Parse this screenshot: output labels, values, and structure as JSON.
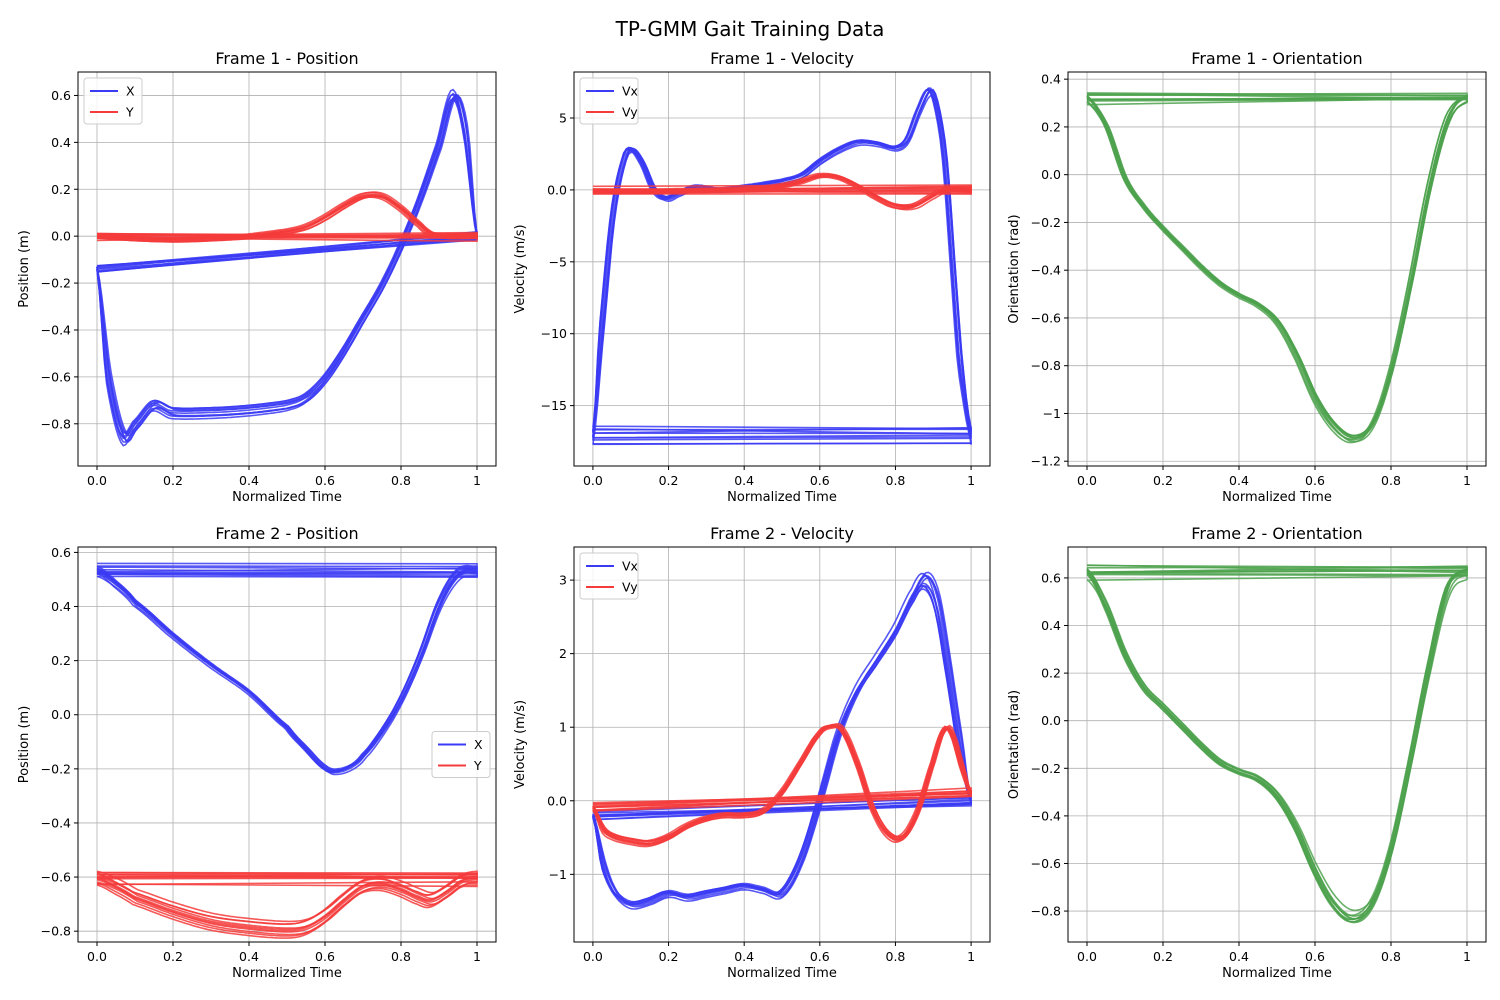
{
  "figure": {
    "title": "TP-GMM Gait Training Data"
  },
  "chart_data": [
    {
      "type": "line",
      "title": "Frame 1 - Position",
      "xlabel": "Normalized Time",
      "ylabel": "Position (m)",
      "xlim": [
        -0.05,
        1.05
      ],
      "ylim": [
        -0.98,
        0.7
      ],
      "xticks": [
        0.0,
        0.2,
        0.4,
        0.6,
        0.8,
        1.0
      ],
      "yticks": [
        -0.8,
        -0.6,
        -0.4,
        -0.2,
        0.0,
        0.2,
        0.4,
        0.6
      ],
      "grid": true,
      "legend": "upper left",
      "legend_entries": [
        "X",
        "Y"
      ],
      "n_trials": 10,
      "series": [
        {
          "name": "X",
          "color": "#3b3bf5",
          "x": [
            0.0,
            0.03,
            0.07,
            0.1,
            0.15,
            0.2,
            0.3,
            0.4,
            0.5,
            0.55,
            0.6,
            0.65,
            0.7,
            0.75,
            0.8,
            0.85,
            0.9,
            0.94,
            0.97,
            1.0
          ],
          "y": [
            -0.14,
            -0.6,
            -0.86,
            -0.82,
            -0.73,
            -0.76,
            -0.76,
            -0.75,
            -0.73,
            -0.7,
            -0.62,
            -0.5,
            -0.36,
            -0.22,
            -0.05,
            0.15,
            0.38,
            0.6,
            0.45,
            0.0
          ]
        },
        {
          "name": "Y",
          "color": "#f53b3b",
          "x": [
            0.0,
            0.1,
            0.2,
            0.3,
            0.4,
            0.5,
            0.55,
            0.6,
            0.65,
            0.7,
            0.75,
            0.8,
            0.85,
            0.88,
            0.92,
            1.0
          ],
          "y": [
            0.0,
            -0.01,
            -0.015,
            -0.01,
            0.0,
            0.02,
            0.04,
            0.08,
            0.13,
            0.17,
            0.17,
            0.12,
            0.05,
            0.01,
            0.0,
            0.0
          ]
        }
      ]
    },
    {
      "type": "line",
      "title": "Frame 1 - Velocity",
      "xlabel": "Normalized Time",
      "ylabel": "Velocity (m/s)",
      "xlim": [
        -0.05,
        1.05
      ],
      "ylim": [
        -19.2,
        8.2
      ],
      "xticks": [
        0.0,
        0.2,
        0.4,
        0.6,
        0.8,
        1.0
      ],
      "yticks": [
        -15,
        -10,
        -5,
        0,
        5
      ],
      "grid": true,
      "legend": "upper left",
      "legend_entries": [
        "Vx",
        "Vy"
      ],
      "n_trials": 10,
      "series": [
        {
          "name": "Vx",
          "color": "#3b3bf5",
          "x": [
            0.0,
            0.02,
            0.05,
            0.08,
            0.1,
            0.13,
            0.16,
            0.19,
            0.22,
            0.27,
            0.33,
            0.4,
            0.5,
            0.55,
            0.6,
            0.65,
            0.7,
            0.75,
            0.8,
            0.83,
            0.86,
            0.89,
            0.91,
            0.93,
            0.95,
            0.97,
            1.0
          ],
          "y": [
            -17.0,
            -10.0,
            -2.0,
            2.0,
            2.8,
            1.8,
            0.0,
            -0.6,
            -0.3,
            0.2,
            0.0,
            0.2,
            0.6,
            1.0,
            2.0,
            2.8,
            3.3,
            3.2,
            2.9,
            3.5,
            5.5,
            6.9,
            5.5,
            2.0,
            -5.0,
            -12.0,
            -17.0
          ]
        },
        {
          "name": "Vy",
          "color": "#f53b3b",
          "x": [
            0.0,
            0.1,
            0.2,
            0.3,
            0.4,
            0.45,
            0.5,
            0.55,
            0.6,
            0.65,
            0.7,
            0.75,
            0.8,
            0.85,
            0.9,
            0.93,
            0.95,
            1.0
          ],
          "y": [
            -0.1,
            -0.1,
            -0.05,
            0.0,
            0.05,
            0.15,
            0.3,
            0.6,
            1.0,
            0.9,
            0.3,
            -0.5,
            -1.1,
            -1.1,
            -0.4,
            0.0,
            0.05,
            0.0
          ]
        }
      ]
    },
    {
      "type": "line",
      "title": "Frame 1 - Orientation",
      "xlabel": "Normalized Time",
      "ylabel": "Orientation (rad)",
      "xlim": [
        -0.05,
        1.05
      ],
      "ylim": [
        -1.22,
        0.43
      ],
      "xticks": [
        0.0,
        0.2,
        0.4,
        0.6,
        0.8,
        1.0
      ],
      "yticks": [
        -1.2,
        -1.0,
        -0.8,
        -0.6,
        -0.4,
        -0.2,
        0.0,
        0.2,
        0.4
      ],
      "grid": true,
      "legend": "none",
      "n_trials": 10,
      "series": [
        {
          "name": "",
          "color": "#4ea24e",
          "x": [
            0.0,
            0.05,
            0.1,
            0.15,
            0.2,
            0.25,
            0.3,
            0.35,
            0.4,
            0.45,
            0.5,
            0.55,
            0.6,
            0.65,
            0.7,
            0.75,
            0.8,
            0.85,
            0.9,
            0.95,
            1.0
          ],
          "y": [
            0.32,
            0.2,
            -0.02,
            -0.14,
            -0.23,
            -0.31,
            -0.39,
            -0.46,
            -0.51,
            -0.55,
            -0.62,
            -0.76,
            -0.94,
            -1.06,
            -1.11,
            -1.05,
            -0.82,
            -0.46,
            -0.05,
            0.24,
            0.32
          ]
        }
      ]
    },
    {
      "type": "line",
      "title": "Frame 2 - Position",
      "xlabel": "Normalized Time",
      "ylabel": "Position (m)",
      "xlim": [
        -0.05,
        1.05
      ],
      "ylim": [
        -0.84,
        0.62
      ],
      "xticks": [
        0.0,
        0.2,
        0.4,
        0.6,
        0.8,
        1.0
      ],
      "yticks": [
        -0.8,
        -0.6,
        -0.4,
        -0.2,
        0.0,
        0.2,
        0.4,
        0.6
      ],
      "grid": true,
      "legend": "center right",
      "legend_entries": [
        "X",
        "Y"
      ],
      "n_trials": 10,
      "series": [
        {
          "name": "X",
          "color": "#3b3bf5",
          "x": [
            0.0,
            0.05,
            0.1,
            0.2,
            0.3,
            0.4,
            0.5,
            0.55,
            0.6,
            0.63,
            0.67,
            0.7,
            0.75,
            0.8,
            0.85,
            0.9,
            0.95,
            1.0
          ],
          "y": [
            0.53,
            0.48,
            0.41,
            0.29,
            0.18,
            0.08,
            -0.05,
            -0.13,
            -0.2,
            -0.21,
            -0.19,
            -0.15,
            -0.06,
            0.06,
            0.22,
            0.41,
            0.52,
            0.53
          ]
        },
        {
          "name": "Y",
          "color": "#f53b3b",
          "x": [
            0.0,
            0.05,
            0.1,
            0.2,
            0.3,
            0.4,
            0.5,
            0.55,
            0.6,
            0.65,
            0.7,
            0.75,
            0.8,
            0.85,
            0.88,
            0.92,
            0.96,
            1.0
          ],
          "y": [
            -0.6,
            -0.63,
            -0.67,
            -0.72,
            -0.76,
            -0.78,
            -0.79,
            -0.78,
            -0.74,
            -0.68,
            -0.63,
            -0.62,
            -0.64,
            -0.67,
            -0.68,
            -0.65,
            -0.61,
            -0.6
          ]
        }
      ]
    },
    {
      "type": "line",
      "title": "Frame 2 - Velocity",
      "xlabel": "Normalized Time",
      "ylabel": "Velocity (m/s)",
      "xlim": [
        -0.05,
        1.05
      ],
      "ylim": [
        -1.92,
        3.45
      ],
      "xticks": [
        0.0,
        0.2,
        0.4,
        0.6,
        0.8,
        1.0
      ],
      "yticks": [
        -1,
        0,
        1,
        2,
        3
      ],
      "grid": true,
      "legend": "upper left",
      "legend_entries": [
        "Vx",
        "Vy"
      ],
      "n_trials": 10,
      "series": [
        {
          "name": "Vx",
          "color": "#3b3bf5",
          "x": [
            0.0,
            0.03,
            0.06,
            0.1,
            0.15,
            0.2,
            0.25,
            0.3,
            0.35,
            0.4,
            0.45,
            0.5,
            0.55,
            0.6,
            0.65,
            0.7,
            0.75,
            0.8,
            0.85,
            0.88,
            0.91,
            0.94,
            0.97,
            1.0
          ],
          "y": [
            -0.2,
            -0.9,
            -1.25,
            -1.4,
            -1.35,
            -1.25,
            -1.3,
            -1.25,
            -1.2,
            -1.15,
            -1.2,
            -1.25,
            -0.8,
            0.0,
            0.9,
            1.5,
            1.9,
            2.3,
            2.8,
            3.0,
            2.7,
            1.8,
            0.8,
            0.0
          ]
        },
        {
          "name": "Vy",
          "color": "#f53b3b",
          "x": [
            0.0,
            0.03,
            0.06,
            0.1,
            0.15,
            0.2,
            0.25,
            0.3,
            0.35,
            0.4,
            0.45,
            0.5,
            0.55,
            0.6,
            0.63,
            0.66,
            0.7,
            0.74,
            0.78,
            0.82,
            0.86,
            0.9,
            0.93,
            0.95,
            0.98,
            1.0
          ],
          "y": [
            -0.1,
            -0.4,
            -0.5,
            -0.55,
            -0.58,
            -0.5,
            -0.35,
            -0.25,
            -0.2,
            -0.2,
            -0.15,
            0.1,
            0.5,
            0.9,
            1.0,
            0.95,
            0.5,
            -0.1,
            -0.45,
            -0.5,
            -0.15,
            0.5,
            0.95,
            0.9,
            0.4,
            0.1
          ]
        }
      ]
    },
    {
      "type": "line",
      "title": "Frame 2 - Orientation",
      "xlabel": "Normalized Time",
      "ylabel": "Orientation (rad)",
      "xlim": [
        -0.05,
        1.05
      ],
      "ylim": [
        -0.93,
        0.73
      ],
      "xticks": [
        0.0,
        0.2,
        0.4,
        0.6,
        0.8,
        1.0
      ],
      "yticks": [
        -0.8,
        -0.6,
        -0.4,
        -0.2,
        0.0,
        0.2,
        0.4,
        0.6
      ],
      "grid": true,
      "legend": "none",
      "n_trials": 10,
      "series": [
        {
          "name": "",
          "color": "#4ea24e",
          "x": [
            0.0,
            0.05,
            0.1,
            0.15,
            0.2,
            0.25,
            0.3,
            0.35,
            0.4,
            0.45,
            0.5,
            0.55,
            0.6,
            0.65,
            0.7,
            0.75,
            0.8,
            0.85,
            0.9,
            0.95,
            1.0
          ],
          "y": [
            0.62,
            0.48,
            0.28,
            0.14,
            0.06,
            -0.02,
            -0.1,
            -0.17,
            -0.21,
            -0.24,
            -0.31,
            -0.44,
            -0.62,
            -0.76,
            -0.82,
            -0.76,
            -0.54,
            -0.18,
            0.22,
            0.55,
            0.62
          ]
        }
      ]
    }
  ]
}
